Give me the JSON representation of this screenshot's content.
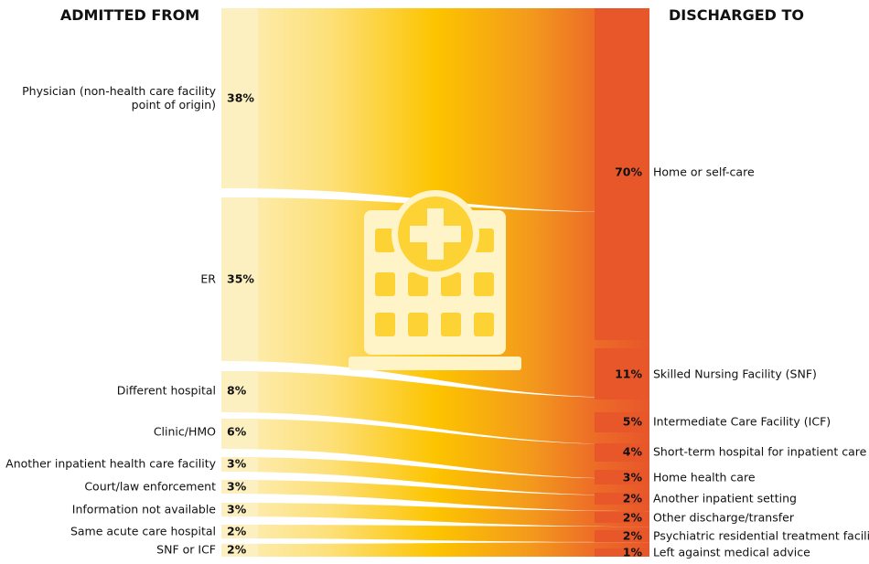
{
  "headers": {
    "left": "ADMITTED FROM",
    "right": "DISCHARGED TO"
  },
  "colors": {
    "left_flow": "#fdf0c0",
    "mid_flow": "#fdc400",
    "right_flow": "#e8572a",
    "icon": "#fff4c8"
  },
  "center_icon": "hospital-building-icon",
  "chart_data": {
    "type": "sankey",
    "sources": [
      {
        "label": "Physician (non-health care facility point of origin)",
        "label_lines": [
          "Physician (non-health care facility",
          "point of origin)"
        ],
        "percent": "38%"
      },
      {
        "label": "ER",
        "label_lines": [
          "ER"
        ],
        "percent": "35%"
      },
      {
        "label": "Different hospital",
        "label_lines": [
          "Different hospital"
        ],
        "percent": "8%"
      },
      {
        "label": "Clinic/HMO",
        "label_lines": [
          "Clinic/HMO"
        ],
        "percent": "6%"
      },
      {
        "label": "Another inpatient health care facility",
        "label_lines": [
          "Another inpatient health care facility"
        ],
        "percent": "3%"
      },
      {
        "label": "Court/law enforcement",
        "label_lines": [
          "Court/law enforcement"
        ],
        "percent": "3%"
      },
      {
        "label": "Information not available",
        "label_lines": [
          "Information not available"
        ],
        "percent": "3%"
      },
      {
        "label": "Same acute care hospital",
        "label_lines": [
          "Same acute care hospital"
        ],
        "percent": "2%"
      },
      {
        "label": "SNF or ICF",
        "label_lines": [
          "SNF or ICF"
        ],
        "percent": "2%"
      }
    ],
    "targets": [
      {
        "label": "Home or self-care",
        "percent": "70%"
      },
      {
        "label": "Skilled Nursing Facility (SNF)",
        "percent": "11%"
      },
      {
        "label": "Intermediate Care Facility (ICF)",
        "percent": "5%"
      },
      {
        "label": "Short-term hospital for inpatient care",
        "percent": "4%"
      },
      {
        "label": "Home health care",
        "percent": "3%"
      },
      {
        "label": "Another inpatient setting",
        "percent": "2%"
      },
      {
        "label": "Other discharge/transfer",
        "percent": "2%"
      },
      {
        "label": "Psychiatric residential treatment facility",
        "percent": "2%"
      },
      {
        "label": "Left against medical advice",
        "percent": "1%"
      }
    ]
  }
}
